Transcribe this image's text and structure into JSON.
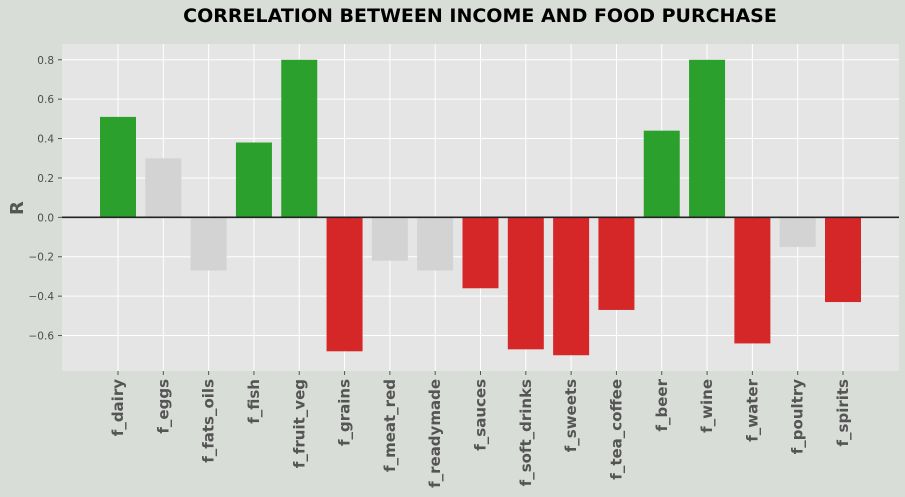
{
  "chart_data": {
    "type": "bar",
    "title": "CORRELATION BETWEEN INCOME AND FOOD PURCHASE",
    "xlabel": "",
    "ylabel": "R",
    "ylim": [
      -0.78,
      0.88
    ],
    "yticks": [
      -0.6,
      -0.4,
      -0.2,
      0.0,
      0.2,
      0.4,
      0.6,
      0.8
    ],
    "ytick_labels": [
      "−0.6",
      "−0.4",
      "−0.2",
      "0.0",
      "0.2",
      "0.4",
      "0.6",
      "0.8"
    ],
    "grid": true,
    "zero_line": true,
    "categories": [
      "f_dairy",
      "f_eggs",
      "f_fats_oils",
      "f_fish",
      "f_fruit_veg",
      "f_grains",
      "f_meat_red",
      "f_readymade",
      "f_sauces",
      "f_soft_drinks",
      "f_sweets",
      "f_tea_coffee",
      "f_beer",
      "f_wine",
      "f_water",
      "f_poultry",
      "f_spirits"
    ],
    "values": [
      0.51,
      0.3,
      -0.27,
      0.38,
      0.8,
      -0.68,
      -0.22,
      -0.27,
      -0.36,
      -0.67,
      -0.7,
      -0.47,
      0.44,
      0.8,
      -0.64,
      -0.15,
      -0.43
    ],
    "bar_colors": [
      "#2ca02c",
      "#d3d3d3",
      "#d3d3d3",
      "#2ca02c",
      "#2ca02c",
      "#d62728",
      "#d3d3d3",
      "#d3d3d3",
      "#d62728",
      "#d62728",
      "#d62728",
      "#d62728",
      "#2ca02c",
      "#2ca02c",
      "#d62728",
      "#d3d3d3",
      "#d62728"
    ]
  },
  "colors": {
    "page_background": "#d9ddd8",
    "plot_background": "#e5e5e5",
    "grid": "#ffffff",
    "zero_line": "#222222",
    "tick_text": "#4d4d4d",
    "category_text": "#555555",
    "title_text": "#000000"
  }
}
